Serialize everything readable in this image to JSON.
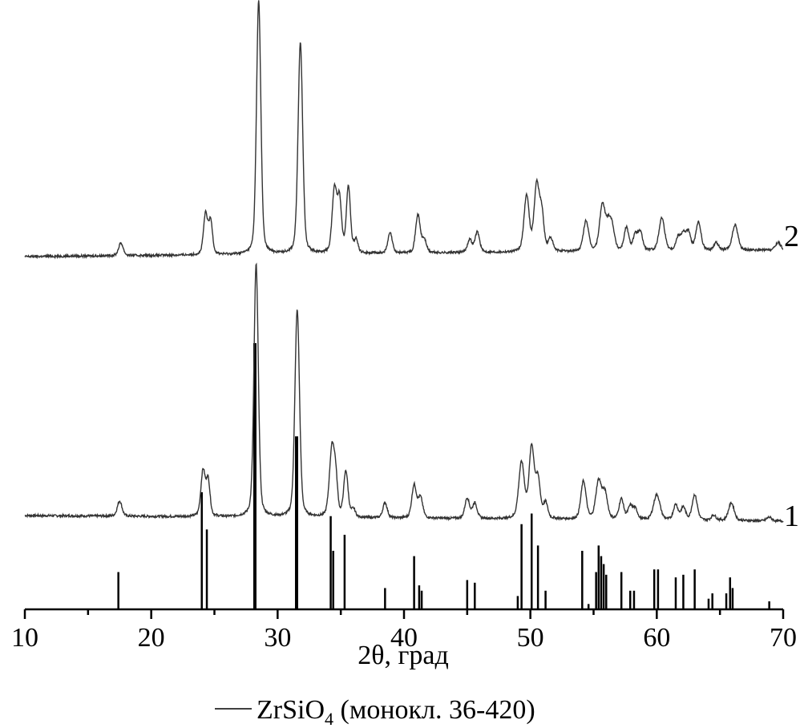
{
  "chart_data": {
    "type": "line",
    "xlabel": "2θ, град",
    "xlim": [
      10,
      70
    ],
    "x_ticks": [
      10,
      20,
      30,
      40,
      50,
      60,
      70
    ],
    "y_axis_visible": false,
    "legend": {
      "prefix": "ZrSiO",
      "subscript": "4",
      "suffix": " (монокл. 36-420)"
    },
    "reference_pattern": {
      "name": "ZrSiO4 (монокл. 36-420)",
      "peaks": [
        {
          "x": 17.4,
          "h": 14
        },
        {
          "x": 24.0,
          "h": 44
        },
        {
          "x": 24.4,
          "h": 30
        },
        {
          "x": 28.2,
          "h": 100
        },
        {
          "x": 31.5,
          "h": 65
        },
        {
          "x": 34.2,
          "h": 35
        },
        {
          "x": 34.4,
          "h": 22
        },
        {
          "x": 35.3,
          "h": 28
        },
        {
          "x": 38.5,
          "h": 8
        },
        {
          "x": 40.8,
          "h": 20
        },
        {
          "x": 41.2,
          "h": 9
        },
        {
          "x": 41.4,
          "h": 7
        },
        {
          "x": 45.0,
          "h": 11
        },
        {
          "x": 45.6,
          "h": 10
        },
        {
          "x": 49.0,
          "h": 5
        },
        {
          "x": 49.3,
          "h": 32
        },
        {
          "x": 50.1,
          "h": 36
        },
        {
          "x": 50.6,
          "h": 24
        },
        {
          "x": 51.2,
          "h": 7
        },
        {
          "x": 54.1,
          "h": 22
        },
        {
          "x": 54.6,
          "h": 2
        },
        {
          "x": 55.2,
          "h": 14
        },
        {
          "x": 55.4,
          "h": 24
        },
        {
          "x": 55.6,
          "h": 20
        },
        {
          "x": 55.8,
          "h": 17
        },
        {
          "x": 56.0,
          "h": 13
        },
        {
          "x": 57.2,
          "h": 14
        },
        {
          "x": 57.9,
          "h": 7
        },
        {
          "x": 58.2,
          "h": 7
        },
        {
          "x": 59.8,
          "h": 15
        },
        {
          "x": 60.1,
          "h": 15
        },
        {
          "x": 61.5,
          "h": 12
        },
        {
          "x": 62.1,
          "h": 13
        },
        {
          "x": 63.0,
          "h": 15
        },
        {
          "x": 64.1,
          "h": 4
        },
        {
          "x": 64.4,
          "h": 6
        },
        {
          "x": 65.5,
          "h": 6
        },
        {
          "x": 65.8,
          "h": 12
        },
        {
          "x": 66.0,
          "h": 8
        },
        {
          "x": 68.9,
          "h": 3
        }
      ]
    },
    "series": [
      {
        "name": "1",
        "peaks": [
          {
            "x": 17.5,
            "h": 6,
            "w": 0.18
          },
          {
            "x": 24.1,
            "h": 18,
            "w": 0.17
          },
          {
            "x": 24.5,
            "h": 14,
            "w": 0.15
          },
          {
            "x": 28.3,
            "h": 100,
            "w": 0.17
          },
          {
            "x": 31.55,
            "h": 82,
            "w": 0.18
          },
          {
            "x": 34.3,
            "h": 27,
            "w": 0.2
          },
          {
            "x": 34.6,
            "h": 12,
            "w": 0.15
          },
          {
            "x": 35.4,
            "h": 18,
            "w": 0.17
          },
          {
            "x": 36.0,
            "h": 3,
            "w": 0.15
          },
          {
            "x": 38.5,
            "h": 6,
            "w": 0.17
          },
          {
            "x": 40.8,
            "h": 13,
            "w": 0.18
          },
          {
            "x": 41.3,
            "h": 8,
            "w": 0.18
          },
          {
            "x": 45.0,
            "h": 8,
            "w": 0.18
          },
          {
            "x": 45.6,
            "h": 6,
            "w": 0.18
          },
          {
            "x": 49.3,
            "h": 22,
            "w": 0.22
          },
          {
            "x": 50.1,
            "h": 28,
            "w": 0.2
          },
          {
            "x": 50.6,
            "h": 15,
            "w": 0.18
          },
          {
            "x": 51.2,
            "h": 6,
            "w": 0.17
          },
          {
            "x": 54.2,
            "h": 15,
            "w": 0.2
          },
          {
            "x": 55.4,
            "h": 15,
            "w": 0.22
          },
          {
            "x": 55.9,
            "h": 10,
            "w": 0.2
          },
          {
            "x": 57.2,
            "h": 8,
            "w": 0.18
          },
          {
            "x": 57.9,
            "h": 5,
            "w": 0.18
          },
          {
            "x": 58.3,
            "h": 4,
            "w": 0.18
          },
          {
            "x": 60.0,
            "h": 10,
            "w": 0.25
          },
          {
            "x": 61.5,
            "h": 6,
            "w": 0.18
          },
          {
            "x": 62.1,
            "h": 5,
            "w": 0.18
          },
          {
            "x": 63.0,
            "h": 10,
            "w": 0.2
          },
          {
            "x": 64.5,
            "h": 2,
            "w": 0.18
          },
          {
            "x": 65.9,
            "h": 7,
            "w": 0.22
          },
          {
            "x": 68.9,
            "h": 1.5,
            "w": 0.2
          }
        ]
      },
      {
        "name": "2",
        "peaks": [
          {
            "x": 17.6,
            "h": 5,
            "w": 0.18
          },
          {
            "x": 24.3,
            "h": 16,
            "w": 0.16
          },
          {
            "x": 24.7,
            "h": 13,
            "w": 0.15
          },
          {
            "x": 28.5,
            "h": 100,
            "w": 0.17
          },
          {
            "x": 31.8,
            "h": 83,
            "w": 0.18
          },
          {
            "x": 34.5,
            "h": 25,
            "w": 0.18
          },
          {
            "x": 34.9,
            "h": 20,
            "w": 0.16
          },
          {
            "x": 35.6,
            "h": 26,
            "w": 0.16
          },
          {
            "x": 36.2,
            "h": 5,
            "w": 0.15
          },
          {
            "x": 38.9,
            "h": 8,
            "w": 0.17
          },
          {
            "x": 41.1,
            "h": 15,
            "w": 0.18
          },
          {
            "x": 41.6,
            "h": 5,
            "w": 0.17
          },
          {
            "x": 45.2,
            "h": 5,
            "w": 0.18
          },
          {
            "x": 45.8,
            "h": 8,
            "w": 0.18
          },
          {
            "x": 49.7,
            "h": 22,
            "w": 0.2
          },
          {
            "x": 50.5,
            "h": 26,
            "w": 0.2
          },
          {
            "x": 50.9,
            "h": 14,
            "w": 0.17
          },
          {
            "x": 51.6,
            "h": 5,
            "w": 0.17
          },
          {
            "x": 54.4,
            "h": 12,
            "w": 0.2
          },
          {
            "x": 55.7,
            "h": 18,
            "w": 0.22
          },
          {
            "x": 56.2,
            "h": 10,
            "w": 0.2
          },
          {
            "x": 56.5,
            "h": 7,
            "w": 0.18
          },
          {
            "x": 57.6,
            "h": 9,
            "w": 0.18
          },
          {
            "x": 58.3,
            "h": 6,
            "w": 0.18
          },
          {
            "x": 58.7,
            "h": 7,
            "w": 0.18
          },
          {
            "x": 60.4,
            "h": 13,
            "w": 0.22
          },
          {
            "x": 61.7,
            "h": 5,
            "w": 0.18
          },
          {
            "x": 62.1,
            "h": 6,
            "w": 0.18
          },
          {
            "x": 62.5,
            "h": 7,
            "w": 0.18
          },
          {
            "x": 63.3,
            "h": 11,
            "w": 0.2
          },
          {
            "x": 64.7,
            "h": 3,
            "w": 0.18
          },
          {
            "x": 66.2,
            "h": 10,
            "w": 0.22
          },
          {
            "x": 69.6,
            "h": 3,
            "w": 0.2
          }
        ]
      }
    ]
  }
}
